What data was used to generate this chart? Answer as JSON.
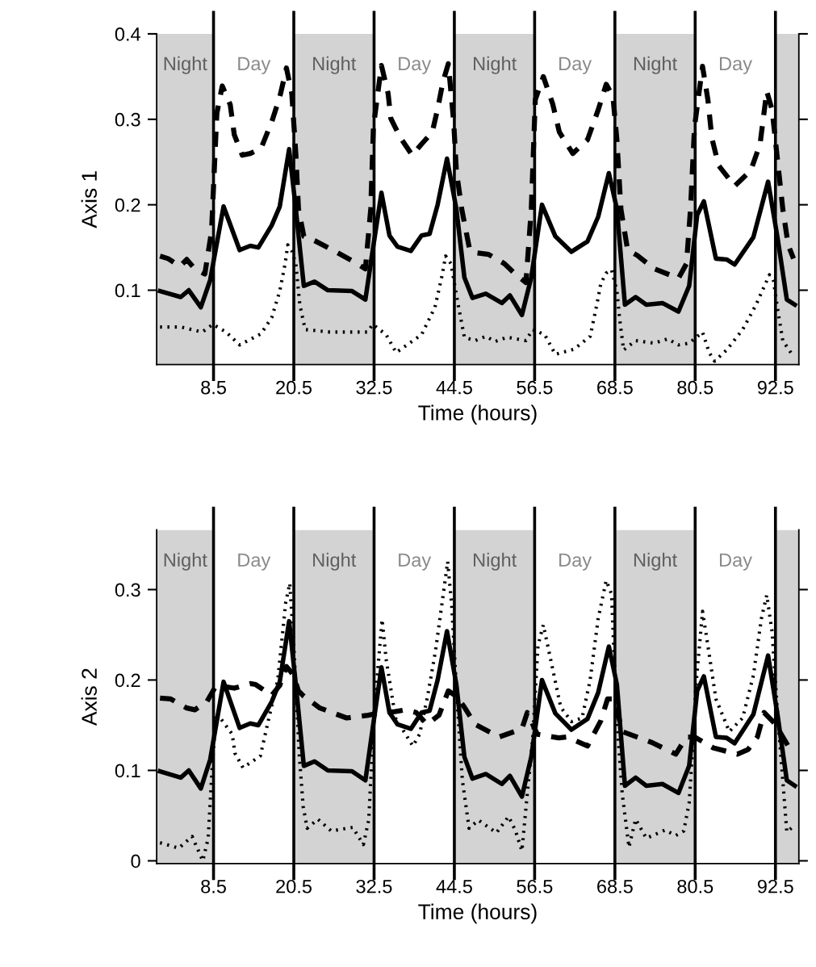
{
  "chart_data": [
    {
      "type": "line",
      "xlabel": "Time (hours)",
      "ylabel": "Axis 1",
      "xlim": [
        0,
        96
      ],
      "ylim": [
        0.013,
        0.4
      ],
      "xticks": [
        8.5,
        20.5,
        32.5,
        44.5,
        56.5,
        68.5,
        80.5,
        92.5
      ],
      "yticks": [
        0.1,
        0.2,
        0.3,
        0.4
      ],
      "grid": false,
      "bands": [
        {
          "axis": "x",
          "from": 0,
          "to": 8.5,
          "label": "Night",
          "color": "#d3d3d3"
        },
        {
          "axis": "x",
          "from": 20.5,
          "to": 32.5,
          "label": "Night",
          "color": "#d3d3d3"
        },
        {
          "axis": "x",
          "from": 44.5,
          "to": 56.5,
          "label": "Night",
          "color": "#d3d3d3"
        },
        {
          "axis": "x",
          "from": 68.5,
          "to": 80.5,
          "label": "Night",
          "color": "#d3d3d3"
        },
        {
          "axis": "x",
          "from": 92.5,
          "to": 96,
          "label": null,
          "color": "#d3d3d3"
        }
      ],
      "annotations": [
        "Day",
        "Day",
        "Day",
        "Day"
      ],
      "ref_lines": [
        {
          "axis": "x",
          "value": 8.5,
          "color": "#000000"
        },
        {
          "axis": "x",
          "value": 20.5,
          "color": "#000000"
        },
        {
          "axis": "x",
          "value": 32.5,
          "color": "#000000"
        },
        {
          "axis": "x",
          "value": 44.5,
          "color": "#000000"
        },
        {
          "axis": "x",
          "value": 56.5,
          "color": "#000000"
        },
        {
          "axis": "x",
          "value": 68.5,
          "color": "#000000"
        },
        {
          "axis": "x",
          "value": 80.5,
          "color": "#000000"
        },
        {
          "axis": "x",
          "value": 92.5,
          "color": "#000000"
        }
      ],
      "series": [
        {
          "color": "#000000",
          "line_style": "solid",
          "x": [
            0.5,
            3.6,
            4.8,
            6.6,
            8.0,
            10.0,
            12.4,
            14.0,
            15.2,
            17.2,
            18.4,
            19.8,
            20.8,
            22.0,
            23.6,
            25.6,
            29.2,
            31.2,
            32.3,
            33.6,
            34.8,
            36.0,
            38.0,
            39.6,
            40.8,
            42.0,
            43.4,
            44.8,
            46.0,
            47.2,
            49.2,
            51.6,
            52.8,
            54.6,
            56.0,
            57.6,
            59.6,
            62.0,
            64.4,
            66.0,
            67.6,
            68.8,
            70.0,
            71.6,
            73.2,
            75.6,
            78.0,
            79.6,
            80.8,
            81.8,
            83.6,
            85.2,
            86.4,
            89.2,
            91.4,
            92.8,
            94.2,
            95.4
          ],
          "values": [
            0.099,
            0.092,
            0.1,
            0.08,
            0.112,
            0.198,
            0.147,
            0.152,
            0.15,
            0.176,
            0.198,
            0.265,
            0.195,
            0.105,
            0.11,
            0.1,
            0.099,
            0.089,
            0.147,
            0.214,
            0.164,
            0.151,
            0.146,
            0.164,
            0.166,
            0.2,
            0.254,
            0.195,
            0.115,
            0.091,
            0.096,
            0.085,
            0.094,
            0.071,
            0.115,
            0.2,
            0.163,
            0.145,
            0.157,
            0.186,
            0.237,
            0.195,
            0.083,
            0.092,
            0.083,
            0.085,
            0.075,
            0.105,
            0.188,
            0.204,
            0.137,
            0.136,
            0.13,
            0.162,
            0.227,
            0.162,
            0.089,
            0.083
          ]
        },
        {
          "color": "#000000",
          "line_style": "dashed",
          "x": [
            0.5,
            1.7,
            3.5,
            4.5,
            5.7,
            7.2,
            8.2,
            9.0,
            9.8,
            11.0,
            11.6,
            12.8,
            14.0,
            15.6,
            17.2,
            18.4,
            19.4,
            20.2,
            20.8,
            21.2,
            22.0,
            23.6,
            26.8,
            30.0,
            31.2,
            32.0,
            32.4,
            33.6,
            34.6,
            35.0,
            36.4,
            38.2,
            39.6,
            41.2,
            42.0,
            42.8,
            43.6,
            44.4,
            44.8,
            45.6,
            46.8,
            47.6,
            49.6,
            52.0,
            53.6,
            55.2,
            56.0,
            56.6,
            57.8,
            59.2,
            60.2,
            62.2,
            64.4,
            66.0,
            67.2,
            68.2,
            68.8,
            69.4,
            70.4,
            71.8,
            74.4,
            78.0,
            79.2,
            79.8,
            80.4,
            81.6,
            82.4,
            83.0,
            84.0,
            86.4,
            88.8,
            90.2,
            91.2,
            92.0,
            92.8,
            93.6,
            94.4,
            95.2
          ],
          "values": [
            0.14,
            0.137,
            0.128,
            0.136,
            0.125,
            0.119,
            0.169,
            0.307,
            0.339,
            0.317,
            0.282,
            0.258,
            0.26,
            0.266,
            0.297,
            0.326,
            0.36,
            0.33,
            0.26,
            0.195,
            0.163,
            0.158,
            0.145,
            0.131,
            0.125,
            0.195,
            0.291,
            0.363,
            0.33,
            0.301,
            0.279,
            0.258,
            0.271,
            0.285,
            0.312,
            0.344,
            0.365,
            0.297,
            0.24,
            0.195,
            0.147,
            0.144,
            0.142,
            0.131,
            0.119,
            0.109,
            0.195,
            0.323,
            0.35,
            0.318,
            0.285,
            0.26,
            0.276,
            0.311,
            0.341,
            0.327,
            0.276,
            0.195,
            0.147,
            0.141,
            0.125,
            0.114,
            0.131,
            0.195,
            0.291,
            0.362,
            0.323,
            0.278,
            0.246,
            0.222,
            0.24,
            0.271,
            0.333,
            0.311,
            0.253,
            0.195,
            0.153,
            0.137
          ]
        },
        {
          "color": "#000000",
          "line_style": "dotted",
          "x": [
            0.5,
            3.6,
            6.8,
            8.4,
            10.4,
            12.4,
            15.6,
            17.2,
            18.4,
            19.2,
            19.6,
            20.2,
            20.8,
            21.4,
            22.2,
            25.9,
            31.5,
            32.3,
            34.3,
            35.8,
            39.6,
            41.6,
            42.6,
            43.2,
            44.0,
            45.0,
            46.0,
            47.6,
            49.2,
            50.6,
            52.4,
            55.2,
            56.2,
            58.0,
            59.6,
            62.4,
            64.8,
            65.8,
            66.4,
            67.2,
            68.0,
            68.8,
            69.2,
            69.8,
            71.6,
            74.4,
            76.4,
            78.0,
            79.6,
            81.6,
            82.6,
            83.4,
            85.2,
            87.6,
            89.6,
            91.6,
            92.2,
            92.8,
            93.6,
            94.8
          ],
          "values": [
            0.057,
            0.057,
            0.051,
            0.06,
            0.051,
            0.036,
            0.049,
            0.068,
            0.099,
            0.131,
            0.153,
            0.146,
            0.131,
            0.083,
            0.054,
            0.051,
            0.051,
            0.06,
            0.048,
            0.027,
            0.048,
            0.08,
            0.115,
            0.14,
            0.131,
            0.086,
            0.045,
            0.041,
            0.046,
            0.04,
            0.045,
            0.041,
            0.054,
            0.048,
            0.025,
            0.031,
            0.046,
            0.083,
            0.108,
            0.12,
            0.124,
            0.099,
            0.067,
            0.03,
            0.041,
            0.038,
            0.043,
            0.036,
            0.038,
            0.051,
            0.027,
            0.017,
            0.03,
            0.054,
            0.083,
            0.118,
            0.112,
            0.079,
            0.041,
            0.027
          ]
        }
      ]
    },
    {
      "type": "line",
      "xlabel": "Time (hours)",
      "ylabel": "Axis 2",
      "xlim": [
        0,
        96
      ],
      "ylim": [
        -0.003,
        0.366
      ],
      "xticks": [
        8.5,
        20.5,
        32.5,
        44.5,
        56.5,
        68.5,
        80.5,
        92.5
      ],
      "yticks": [
        0,
        0.1,
        0.2,
        0.3
      ],
      "grid": false,
      "bands": [
        {
          "axis": "x",
          "from": 0,
          "to": 8.5,
          "label": "Night",
          "color": "#d3d3d3"
        },
        {
          "axis": "x",
          "from": 20.5,
          "to": 32.5,
          "label": "Night",
          "color": "#d3d3d3"
        },
        {
          "axis": "x",
          "from": 44.5,
          "to": 56.5,
          "label": "Night",
          "color": "#d3d3d3"
        },
        {
          "axis": "x",
          "from": 68.5,
          "to": 80.5,
          "label": "Night",
          "color": "#d3d3d3"
        },
        {
          "axis": "x",
          "from": 92.5,
          "to": 96,
          "label": null,
          "color": "#d3d3d3"
        }
      ],
      "annotations": [
        "Day",
        "Day",
        "Day",
        "Day"
      ],
      "ref_lines": [
        {
          "axis": "x",
          "value": 8.5,
          "color": "#000000"
        },
        {
          "axis": "x",
          "value": 20.5,
          "color": "#000000"
        },
        {
          "axis": "x",
          "value": 32.5,
          "color": "#000000"
        },
        {
          "axis": "x",
          "value": 44.5,
          "color": "#000000"
        },
        {
          "axis": "x",
          "value": 56.5,
          "color": "#000000"
        },
        {
          "axis": "x",
          "value": 68.5,
          "color": "#000000"
        },
        {
          "axis": "x",
          "value": 80.5,
          "color": "#000000"
        },
        {
          "axis": "x",
          "value": 92.5,
          "color": "#000000"
        }
      ],
      "series": [
        {
          "color": "#000000",
          "line_style": "solid",
          "x": [
            0.5,
            3.6,
            4.8,
            6.6,
            8.0,
            10.0,
            12.4,
            14.0,
            15.2,
            17.2,
            18.4,
            19.8,
            20.8,
            22.0,
            23.6,
            25.6,
            29.2,
            31.2,
            32.3,
            33.6,
            34.8,
            36.0,
            38.0,
            39.6,
            40.8,
            42.0,
            43.4,
            44.8,
            46.0,
            47.2,
            49.2,
            51.6,
            52.8,
            54.6,
            56.0,
            57.6,
            59.6,
            62.0,
            64.4,
            66.0,
            67.6,
            68.8,
            70.0,
            71.6,
            73.2,
            75.6,
            78.0,
            79.6,
            80.8,
            81.8,
            83.6,
            85.2,
            86.4,
            89.2,
            91.4,
            92.8,
            94.2,
            95.4
          ],
          "values": [
            0.099,
            0.092,
            0.1,
            0.08,
            0.112,
            0.198,
            0.147,
            0.152,
            0.15,
            0.176,
            0.198,
            0.265,
            0.195,
            0.105,
            0.11,
            0.1,
            0.099,
            0.089,
            0.147,
            0.214,
            0.164,
            0.151,
            0.146,
            0.164,
            0.166,
            0.2,
            0.254,
            0.195,
            0.115,
            0.091,
            0.096,
            0.085,
            0.094,
            0.071,
            0.115,
            0.2,
            0.163,
            0.145,
            0.157,
            0.186,
            0.237,
            0.195,
            0.083,
            0.092,
            0.083,
            0.085,
            0.075,
            0.105,
            0.188,
            0.204,
            0.137,
            0.136,
            0.13,
            0.162,
            0.227,
            0.162,
            0.089,
            0.083
          ]
        },
        {
          "color": "#000000",
          "line_style": "dashed",
          "x": [
            0.5,
            2.1,
            4.5,
            5.7,
            7.5,
            8.9,
            11.6,
            14.0,
            14.8,
            17.2,
            18.4,
            19.4,
            20.4,
            21.2,
            22.0,
            24.4,
            28.4,
            31.6,
            33.6,
            35.6,
            37.2,
            38.8,
            40.4,
            42.2,
            43.6,
            44.8,
            46.0,
            47.6,
            51.2,
            54.6,
            55.4,
            56.9,
            60.1,
            61.3,
            64.4,
            66.4,
            67.4,
            68.4,
            69.6,
            74.0,
            77.6,
            79.2,
            80.4,
            83.2,
            86.8,
            88.4,
            89.8,
            90.8,
            92.4,
            94.4
          ],
          "values": [
            0.18,
            0.179,
            0.169,
            0.167,
            0.176,
            0.194,
            0.191,
            0.196,
            0.195,
            0.183,
            0.194,
            0.215,
            0.206,
            0.188,
            0.182,
            0.169,
            0.158,
            0.161,
            0.164,
            0.165,
            0.167,
            0.164,
            0.151,
            0.161,
            0.188,
            0.182,
            0.17,
            0.151,
            0.137,
            0.146,
            0.164,
            0.14,
            0.136,
            0.137,
            0.127,
            0.155,
            0.179,
            0.179,
            0.143,
            0.131,
            0.118,
            0.137,
            0.137,
            0.125,
            0.118,
            0.123,
            0.137,
            0.164,
            0.152,
            0.127
          ]
        },
        {
          "color": "#000000",
          "line_style": "dotted",
          "x": [
            0.5,
            3.3,
            5.3,
            6.9,
            7.7,
            8.3,
            8.9,
            11.3,
            11.7,
            12.9,
            15.5,
            16.5,
            18.1,
            19.3,
            19.9,
            20.5,
            21.3,
            21.9,
            22.5,
            24.1,
            26.1,
            29.3,
            30.9,
            31.7,
            32.1,
            32.5,
            33.7,
            34.3,
            35.7,
            38.3,
            39.3,
            40.5,
            41.7,
            42.9,
            43.5,
            44.1,
            44.9,
            45.7,
            46.7,
            48.1,
            50.8,
            52.6,
            53.6,
            54.6,
            55.4,
            56.2,
            57.0,
            57.8,
            58.8,
            60.4,
            62.0,
            63.6,
            64.8,
            66.0,
            67.2,
            68.0,
            68.4,
            69.0,
            69.6,
            70.6,
            71.6,
            73.2,
            76.0,
            77.6,
            78.8,
            79.6,
            80.2,
            80.6,
            81.6,
            82.4,
            83.6,
            85.6,
            87.6,
            89.2,
            90.4,
            91.2,
            92.0,
            92.8,
            93.6,
            94.2,
            95.2
          ],
          "values": [
            0.02,
            0.014,
            0.027,
            0.0,
            0.025,
            0.104,
            0.164,
            0.14,
            0.119,
            0.103,
            0.116,
            0.149,
            0.2,
            0.286,
            0.307,
            0.238,
            0.119,
            0.06,
            0.036,
            0.046,
            0.033,
            0.037,
            0.018,
            0.045,
            0.104,
            0.164,
            0.267,
            0.223,
            0.158,
            0.127,
            0.14,
            0.182,
            0.233,
            0.298,
            0.331,
            0.283,
            0.179,
            0.089,
            0.036,
            0.045,
            0.031,
            0.049,
            0.034,
            0.011,
            0.074,
            0.134,
            0.238,
            0.261,
            0.226,
            0.17,
            0.154,
            0.158,
            0.2,
            0.268,
            0.31,
            0.295,
            0.223,
            0.134,
            0.074,
            0.015,
            0.046,
            0.025,
            0.034,
            0.028,
            0.033,
            0.064,
            0.134,
            0.193,
            0.276,
            0.238,
            0.179,
            0.143,
            0.158,
            0.205,
            0.268,
            0.294,
            0.253,
            0.164,
            0.089,
            0.032,
            0.038
          ]
        }
      ]
    }
  ]
}
